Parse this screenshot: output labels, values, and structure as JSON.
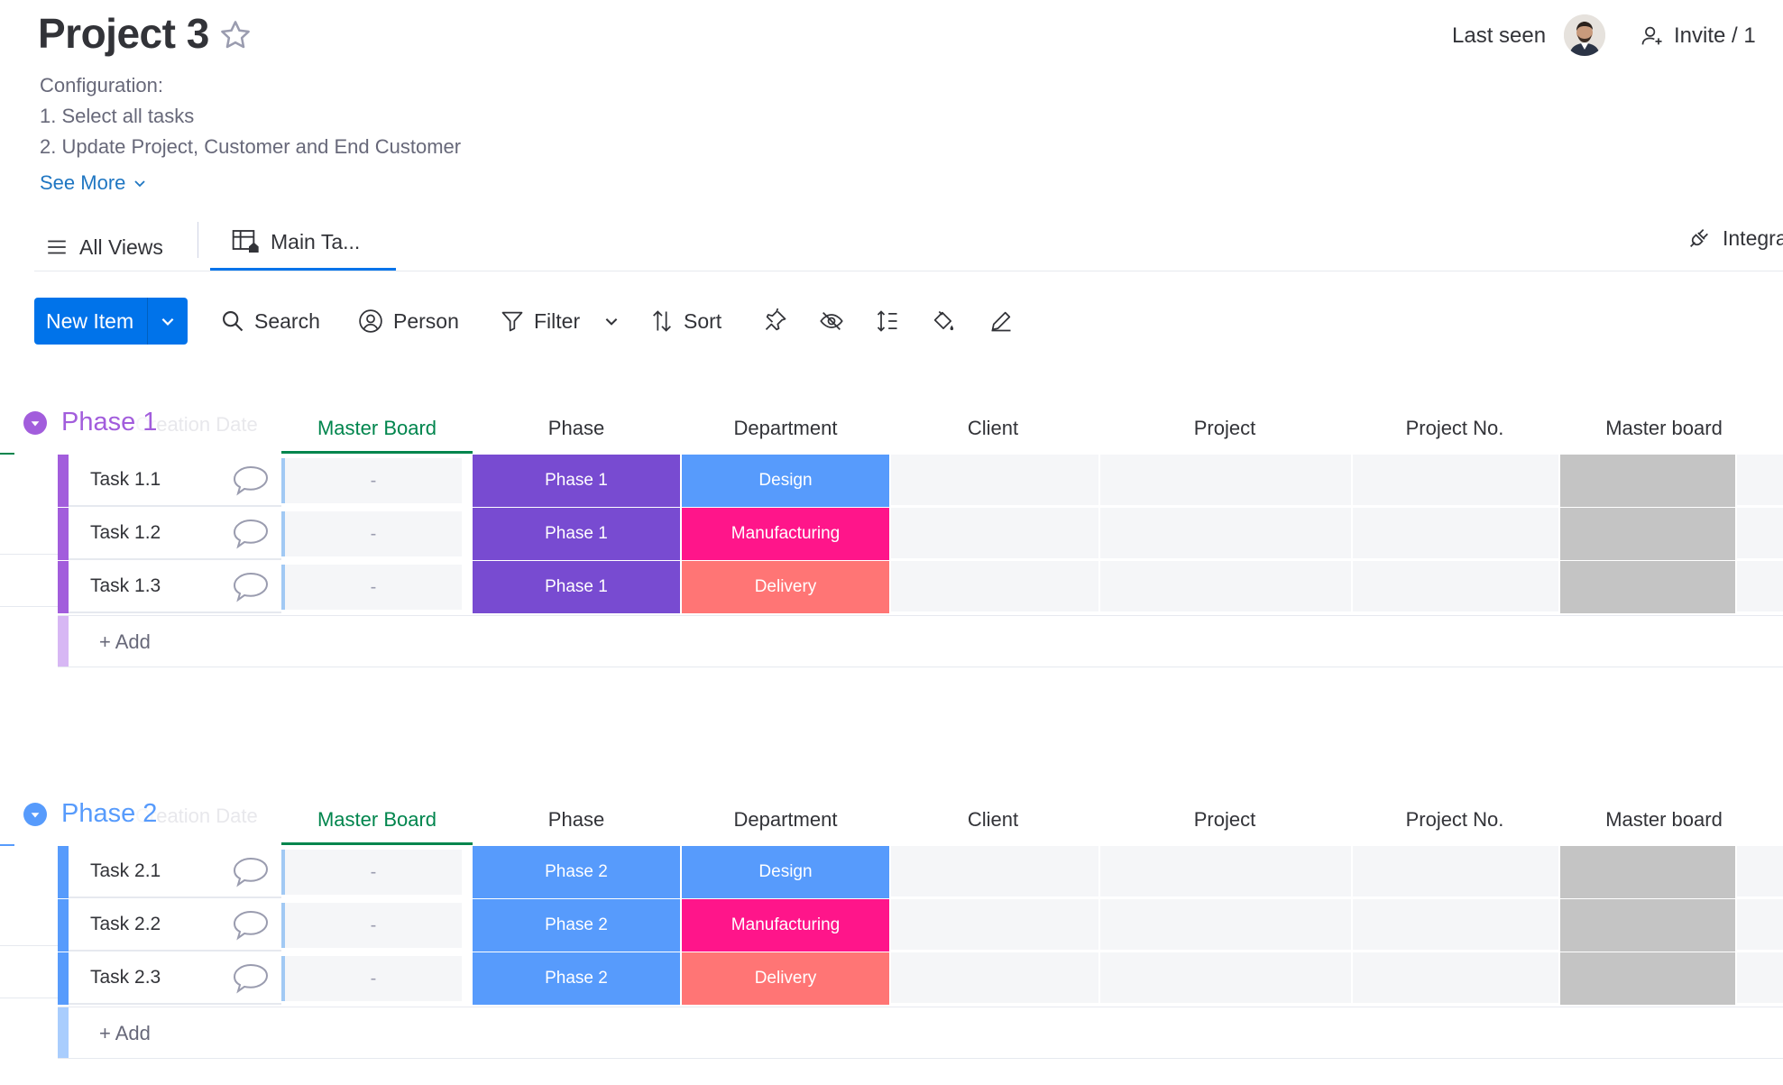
{
  "header": {
    "title": "Project 3",
    "description": [
      "Configuration:",
      "1. Select all tasks",
      "2. Update Project, Customer and End Customer"
    ],
    "see_more": "See More",
    "last_seen": "Last seen",
    "invite": "Invite / 1"
  },
  "tabs": {
    "all_views": "All Views",
    "main_table": "Main Ta...",
    "integrate": "Integra"
  },
  "toolbar": {
    "new_item": "New Item",
    "search": "Search",
    "person": "Person",
    "filter": "Filter",
    "sort": "Sort"
  },
  "columns": {
    "ghost": "Creation Date",
    "master_board": "Master Board",
    "phase": "Phase",
    "department": "Department",
    "client": "Client",
    "project": "Project",
    "project_no": "Project No.",
    "master_board_2": "Master board"
  },
  "groups": [
    {
      "title": "Phase 1",
      "color": "#a25ddc",
      "stripe_color": "#a25ddc",
      "add_stripe": "#d7b7f4",
      "add_label": "+ Add",
      "rows": [
        {
          "name": "Task 1.1",
          "master": "-",
          "phase": "Phase 1",
          "phase_color": "#784bd1",
          "department": "Design",
          "dept_color": "#579bfc"
        },
        {
          "name": "Task 1.2",
          "master": "-",
          "phase": "Phase 1",
          "phase_color": "#784bd1",
          "department": "Manufacturing",
          "dept_color": "#ff158a"
        },
        {
          "name": "Task 1.3",
          "master": "-",
          "phase": "Phase 1",
          "phase_color": "#784bd1",
          "department": "Delivery",
          "dept_color": "#ff7575"
        }
      ]
    },
    {
      "title": "Phase 2",
      "color": "#579bfc",
      "stripe_color": "#579bfc",
      "add_stripe": "#a9cdfd",
      "add_label": "+ Add",
      "rows": [
        {
          "name": "Task 2.1",
          "master": "-",
          "phase": "Phase 2",
          "phase_color": "#579bfc",
          "department": "Design",
          "dept_color": "#579bfc"
        },
        {
          "name": "Task 2.2",
          "master": "-",
          "phase": "Phase 2",
          "phase_color": "#579bfc",
          "department": "Manufacturing",
          "dept_color": "#ff158a"
        },
        {
          "name": "Task 2.3",
          "master": "-",
          "phase": "Phase 2",
          "phase_color": "#579bfc",
          "department": "Delivery",
          "dept_color": "#ff7575"
        }
      ]
    }
  ]
}
